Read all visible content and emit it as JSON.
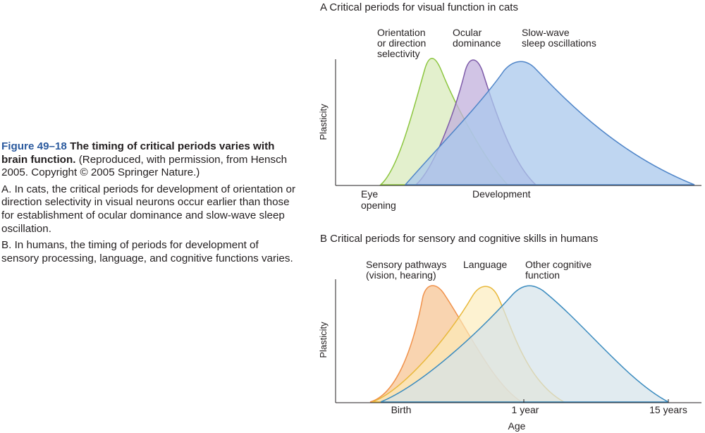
{
  "caption": {
    "figure_number": "Figure 49–18",
    "title": "The timing of critical periods varies with brain function.",
    "credit": "(Reproduced, with permission, from Hensch 2005. Copyright © 2005 Springer Nature.)",
    "paragraph_a": "A. In cats, the critical periods for development of orientation or direction selectivity in visual neurons occur earlier than those for establishment of ocular dominance and slow-wave sleep oscillation.",
    "paragraph_b": "B. In humans, the timing of periods for development of sensory processing, language, and cognitive functions varies."
  },
  "panel_a": {
    "title": "A  Critical periods for visual function in cats",
    "y_axis_label": "Plasticity",
    "curves": [
      {
        "label_line1": "Orientation",
        "label_line2": "or direction",
        "label_line3": "selectivity",
        "fill": "#dcecc0",
        "stroke": "#8cc63f"
      },
      {
        "label_line1": "Ocular",
        "label_line2": "dominance",
        "fill": "#c2b0dc",
        "stroke": "#7d5aa8"
      },
      {
        "label_line1": "Slow-wave",
        "label_line2": "sleep oscillations",
        "fill": "#a9c8ec",
        "stroke": "#4f85c8"
      }
    ],
    "x_labels": {
      "eye_line1": "Eye",
      "eye_line2": "opening",
      "development": "Development"
    }
  },
  "panel_b": {
    "title": "B  Critical periods for sensory and cognitive skills in humans",
    "y_axis_label": "Plasticity",
    "curves": [
      {
        "label_line1": "Sensory pathways",
        "label_line2": "(vision, hearing)",
        "fill": "#f8c99c",
        "stroke": "#f0914a"
      },
      {
        "label_line1": "Language",
        "fill": "#fcebb8",
        "stroke": "#e8b83a"
      },
      {
        "label_line1": "Other cognitive",
        "label_line2": "function",
        "fill": "#d4e3ea",
        "stroke": "#3a8bbf"
      }
    ],
    "x_ticks": {
      "birth": "Birth",
      "one_year": "1 year",
      "fifteen_years": "15 years"
    },
    "x_axis_label": "Age"
  }
}
